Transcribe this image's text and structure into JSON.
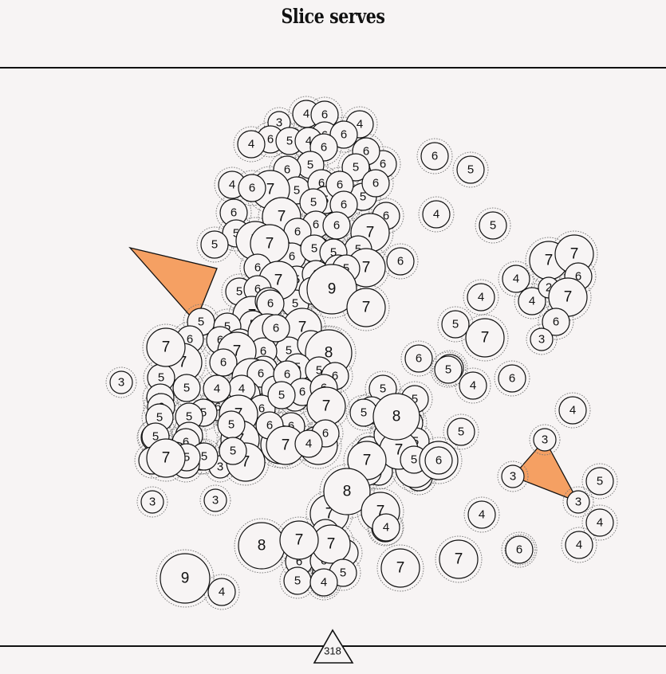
{
  "title": "Slice serves",
  "counter": "318",
  "colors": {
    "background": "#f7f4f4",
    "highlight": "#f5a063",
    "stroke": "#111111",
    "halo": "#777777"
  },
  "circle_values": [
    4,
    6,
    4,
    3,
    6,
    6,
    4,
    5,
    6,
    4,
    6,
    6,
    6,
    5,
    5,
    6,
    5,
    5,
    4,
    6,
    7,
    5,
    6,
    6,
    6,
    5,
    6,
    6,
    7,
    6,
    6,
    6,
    7,
    5,
    5,
    6,
    6,
    6,
    7,
    6,
    5,
    5,
    5,
    7,
    7,
    5,
    6,
    6,
    6,
    5,
    5,
    5,
    7,
    6,
    7,
    6,
    5,
    4,
    5,
    9,
    7,
    5,
    6,
    6,
    7,
    5,
    5,
    7,
    6,
    6,
    5,
    6,
    4,
    7,
    6,
    8,
    6,
    6,
    7,
    6,
    5,
    6,
    5,
    5,
    6,
    5,
    7,
    5,
    6,
    5,
    5,
    6,
    6,
    7,
    6,
    6,
    5,
    5,
    4,
    4,
    6,
    7,
    7,
    5,
    5,
    7,
    5,
    6,
    6,
    4,
    6,
    6,
    7,
    7,
    6,
    7,
    6,
    7,
    5,
    5,
    6,
    6,
    5,
    5,
    6,
    5,
    5,
    4,
    4,
    3,
    7,
    4,
    5,
    7,
    6,
    6,
    6,
    5,
    5,
    5,
    5,
    4,
    4,
    5,
    5,
    7,
    7,
    6,
    6,
    7,
    5,
    5,
    5,
    7,
    7,
    8,
    6,
    6,
    7,
    4,
    4,
    8,
    4,
    7,
    5,
    3,
    5,
    5,
    6,
    7,
    4,
    8,
    5,
    7,
    4,
    4,
    7,
    3,
    3,
    3,
    3,
    6,
    4,
    9,
    4,
    7,
    7,
    4,
    2,
    6,
    7,
    4,
    6,
    3,
    7,
    5,
    6,
    4,
    5,
    6,
    5,
    5,
    6,
    4,
    4,
    3,
    5,
    4,
    3,
    3,
    6
  ]
}
